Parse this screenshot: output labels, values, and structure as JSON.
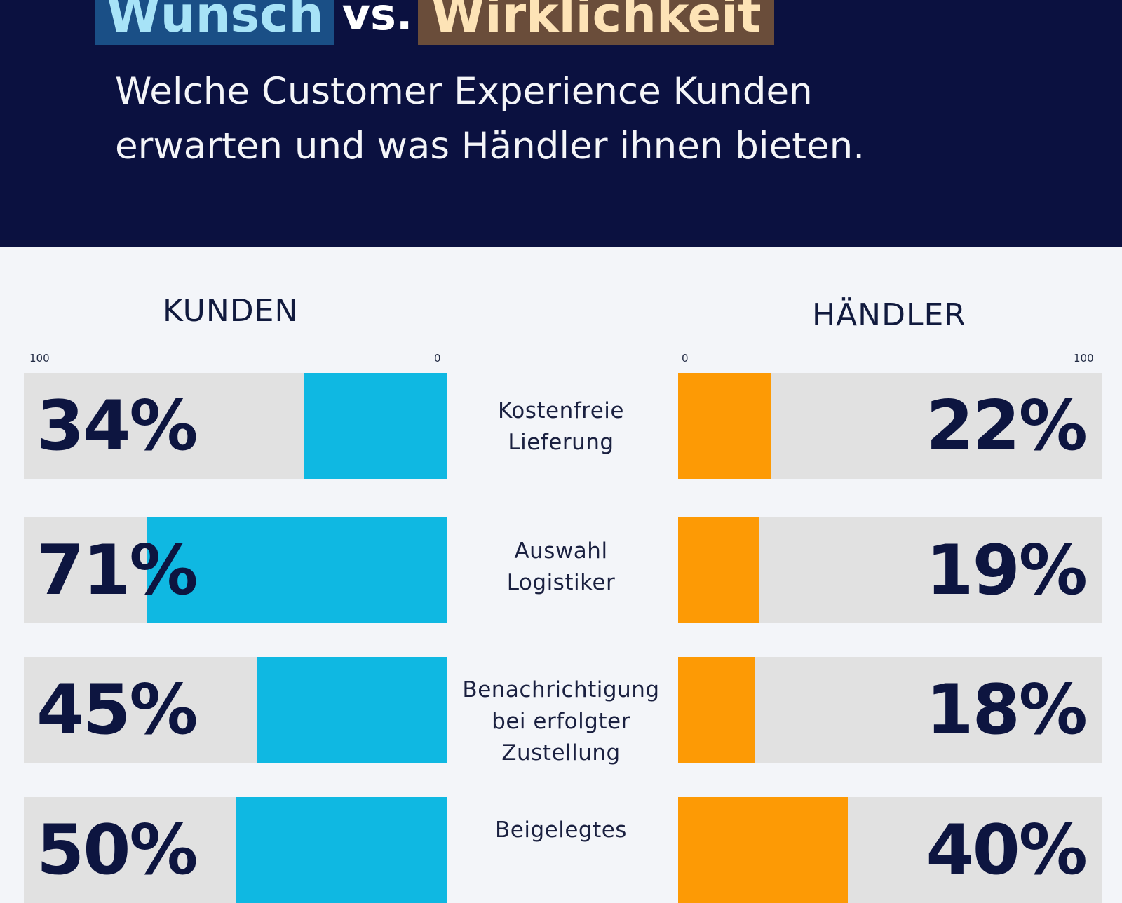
{
  "header": {
    "title_left": "Wunsch",
    "title_vs": "vs.",
    "title_right": "Wirklichkeit",
    "subtitle_line1": "Welche Customer Experience Kunden",
    "subtitle_line2": "erwarten und was Händler ihnen bieten."
  },
  "columns": {
    "left": "KUNDEN",
    "right": "HÄNDLER"
  },
  "axis": {
    "left_max": "100",
    "left_min": "0",
    "right_min": "0",
    "right_max": "100"
  },
  "chart_data": {
    "type": "bar",
    "title": "Wunsch vs. Wirklichkeit",
    "xlabel": "",
    "ylabel": "%",
    "xlim": [
      0,
      100
    ],
    "categories": [
      [
        "Kostenfreie",
        "Lieferung"
      ],
      [
        "Auswahl",
        "Logistiker"
      ],
      [
        "Benachrichtigung",
        "bei erfolgter",
        "Zustellung"
      ],
      [
        "Beigelegtes"
      ]
    ],
    "series": [
      {
        "name": "KUNDEN",
        "color": "#0fb8e2",
        "values": [
          34,
          71,
          45,
          50
        ],
        "labels": [
          "34%",
          "71%",
          "45%",
          "50%"
        ]
      },
      {
        "name": "HÄNDLER",
        "color": "#fd9a05",
        "values": [
          22,
          19,
          18,
          40
        ],
        "labels": [
          "22%",
          "19%",
          "18%",
          "40%"
        ]
      }
    ]
  }
}
